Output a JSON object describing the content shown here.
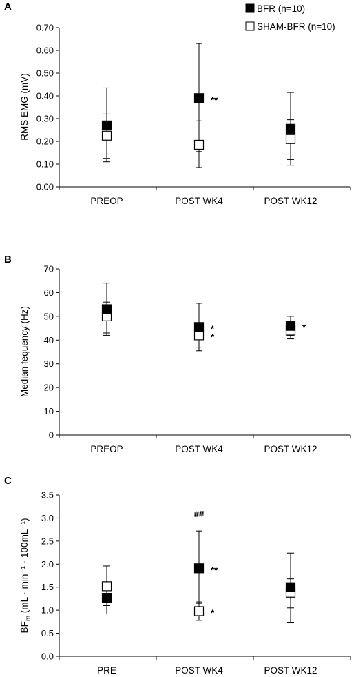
{
  "legend": {
    "placement": "top-right",
    "entries": [
      {
        "label": "BFR (n=10)",
        "fill": "#000000"
      },
      {
        "label": "SHAM-BFR (n=10)",
        "fill": "#ffffff"
      }
    ]
  },
  "chart_data": [
    {
      "type": "scatter",
      "panel_label": "A",
      "ylabel": "RMS EMG (mV)",
      "ylabel_sub": "",
      "ylabel_tail": "",
      "categories": [
        "PREOP",
        "POST WK4",
        "POST WK12"
      ],
      "ylim": [
        0,
        0.7
      ],
      "yticks": [
        0,
        0.1,
        0.2,
        0.3,
        0.4,
        0.5,
        0.6,
        0.7
      ],
      "tick_decimals": 2,
      "grid": false,
      "series": [
        {
          "name": "BFR (n=10)",
          "marker": "filled-square",
          "values": [
            0.27,
            0.39,
            0.255
          ],
          "error_upper": [
            0.435,
            0.63,
            0.415
          ],
          "error_lower": [
            0.125,
            0.155,
            0.12
          ]
        },
        {
          "name": "SHAM-BFR (n=10)",
          "marker": "open-square",
          "values": [
            0.225,
            0.185,
            0.21
          ],
          "error_upper": [
            0.32,
            0.29,
            0.295
          ],
          "error_lower": [
            0.11,
            0.085,
            0.095
          ]
        }
      ],
      "annotations": [
        {
          "category": 1,
          "series": 0,
          "text": "**"
        }
      ]
    },
    {
      "type": "scatter",
      "panel_label": "B",
      "ylabel": "Median fequency (Hz)",
      "ylabel_sub": "",
      "ylabel_tail": "",
      "categories": [
        "PREOP",
        "POST WK4",
        "POST WK12"
      ],
      "ylim": [
        0,
        70
      ],
      "yticks": [
        0,
        10,
        20,
        30,
        40,
        50,
        60,
        70
      ],
      "tick_decimals": 0,
      "grid": false,
      "series": [
        {
          "name": "BFR (n=10)",
          "marker": "filled-square",
          "values": [
            53,
            45.5,
            46
          ],
          "error_upper": [
            64,
            55.5,
            50
          ],
          "error_lower": [
            43,
            37,
            42
          ]
        },
        {
          "name": "SHAM-BFR (n=10)",
          "marker": "open-square",
          "values": [
            50,
            42,
            44
          ],
          "error_upper": [
            56,
            47,
            47
          ],
          "error_lower": [
            42,
            35.5,
            40.5
          ]
        }
      ],
      "annotations": [
        {
          "category": 1,
          "series": 0,
          "text": "*"
        },
        {
          "category": 1,
          "series": 1,
          "text": "*"
        },
        {
          "category": 2,
          "series": 0,
          "text": "*"
        }
      ]
    },
    {
      "type": "scatter",
      "panel_label": "C",
      "ylabel": "BF",
      "ylabel_sub": "m",
      "ylabel_tail": " (mL · min⁻¹ · 100mL⁻¹)",
      "categories": [
        "PRE",
        "POST WK4",
        "POST WK12"
      ],
      "ylim": [
        0,
        3.5
      ],
      "yticks": [
        0,
        0.5,
        1,
        1.5,
        2,
        2.5,
        3,
        3.5
      ],
      "tick_decimals": 1,
      "grid": false,
      "series": [
        {
          "name": "BFR (n=10)",
          "marker": "filled-square",
          "values": [
            1.27,
            1.91,
            1.5
          ],
          "error_upper": [
            1.55,
            2.72,
            2.24
          ],
          "error_lower": [
            0.92,
            1.15,
            0.74
          ]
        },
        {
          "name": "SHAM-BFR (n=10)",
          "marker": "open-square",
          "values": [
            1.52,
            0.98,
            1.38
          ],
          "error_upper": [
            1.96,
            1.18,
            1.68
          ],
          "error_lower": [
            1.1,
            0.78,
            1.05
          ]
        }
      ],
      "annotations": [
        {
          "category": 1,
          "series": 0,
          "text": "**"
        },
        {
          "category": 1,
          "series": 1,
          "text": "*"
        },
        {
          "category": 1,
          "series": 0,
          "text": "##",
          "position": "above"
        }
      ]
    }
  ]
}
